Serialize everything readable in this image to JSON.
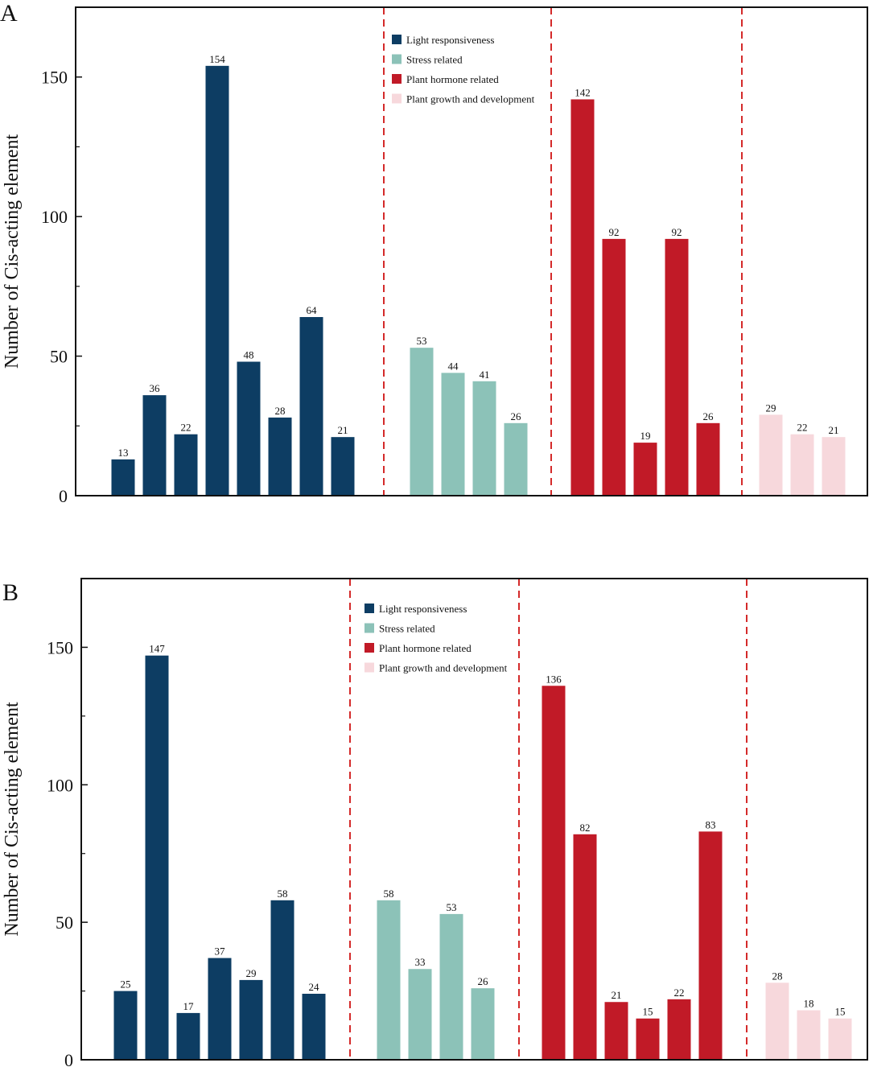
{
  "colors": {
    "light": "#0d3d63",
    "stress": "#8cc2b8",
    "hormone": "#c11a27",
    "growth": "#f7d8dc",
    "separator": "#d42a2a"
  },
  "chart_data": [
    {
      "panel": "A",
      "type": "bar",
      "ylabel": "Number of Cis-acting element",
      "ylim": [
        0,
        175
      ],
      "yticks": [
        0,
        50,
        100,
        150
      ],
      "legend": [
        "Light responsiveness",
        "Stress related",
        "Plant hormone related",
        "Plant growth and development"
      ],
      "legend_position": "top-center",
      "groups": [
        {
          "name": "Light responsiveness",
          "color_key": "light",
          "values": [
            13,
            36,
            22,
            154,
            48,
            28,
            64,
            21
          ]
        },
        {
          "name": "Stress related",
          "color_key": "stress",
          "values": [
            53,
            44,
            41,
            26
          ]
        },
        {
          "name": "Plant hormone related",
          "color_key": "hormone",
          "values": [
            142,
            92,
            19,
            92,
            26
          ]
        },
        {
          "name": "Plant growth and development",
          "color_key": "growth",
          "values": [
            29,
            22,
            21
          ]
        }
      ]
    },
    {
      "panel": "B",
      "type": "bar",
      "ylabel": "Number of Cis-acting element",
      "ylim": [
        0,
        175
      ],
      "yticks": [
        0,
        50,
        100,
        150
      ],
      "legend": [
        "Light responsiveness",
        "Stress related",
        "Plant hormone related",
        "Plant growth and development"
      ],
      "legend_position": "top-center",
      "groups": [
        {
          "name": "Light responsiveness",
          "color_key": "light",
          "values": [
            25,
            147,
            17,
            37,
            29,
            58,
            24
          ]
        },
        {
          "name": "Stress related",
          "color_key": "stress",
          "values": [
            58,
            33,
            53,
            26
          ]
        },
        {
          "name": "Plant hormone related",
          "color_key": "hormone",
          "values": [
            136,
            82,
            21,
            15,
            22,
            83
          ]
        },
        {
          "name": "Plant growth and development",
          "color_key": "growth",
          "values": [
            28,
            18,
            15
          ]
        }
      ]
    }
  ]
}
